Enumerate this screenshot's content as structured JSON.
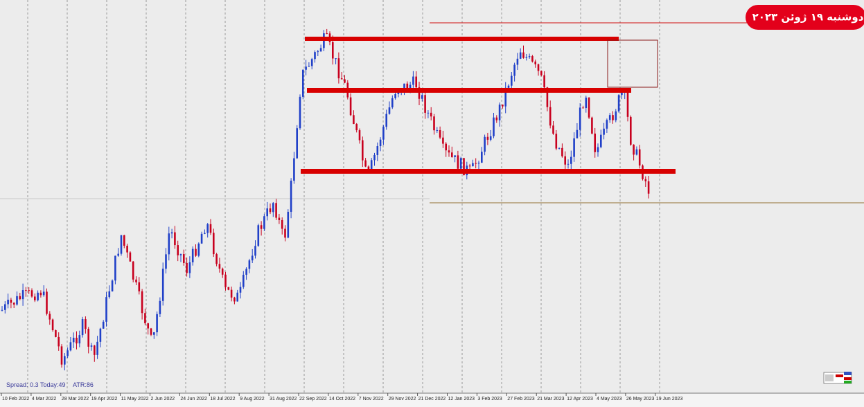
{
  "badge": "دوشنبه ۱۹ ژوئن ۲۰۲۳",
  "status": {
    "spread": "Spread: 0.3",
    "today": "Today:49",
    "atr": "ATR:86"
  },
  "x_axis": {
    "labels": [
      "10 Feb 2022",
      "4 Mar 2022",
      "28 Mar 2022",
      "19 Apr 2022",
      "11 May 2022",
      "2 Jun 2022",
      "24 Jun 2022",
      "18 Jul 2022",
      "9 Aug 2022",
      "31 Aug 2022",
      "22 Sep 2022",
      "14 Oct 2022",
      "7 Nov 2022",
      "29 Nov 2022",
      "21 Dec 2022",
      "12 Jan 2023",
      "3 Feb 2023",
      "27 Feb 2023",
      "21 Mar 2023",
      "12 Apr 2023",
      "4 May 2023",
      "26 May 2023",
      "19 Jun 2023"
    ]
  }
}
